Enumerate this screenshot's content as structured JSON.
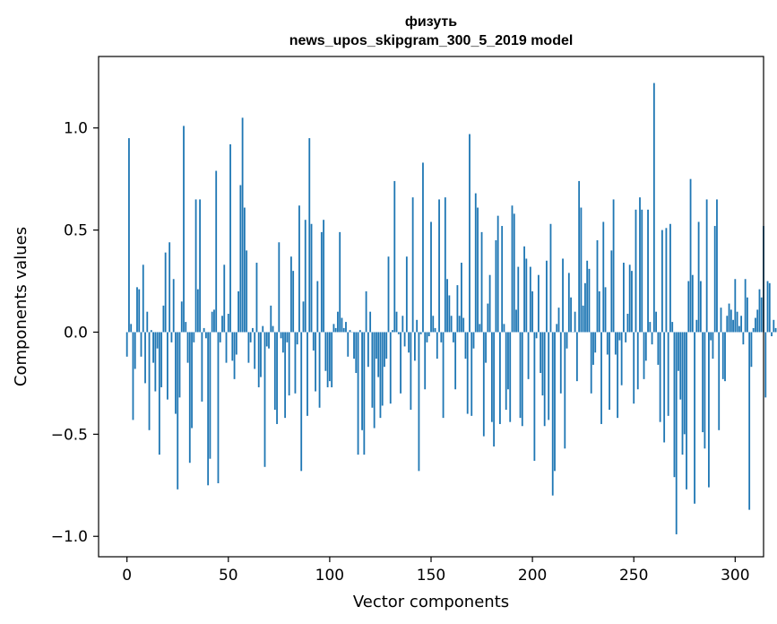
{
  "chart_data": {
    "type": "bar",
    "title_line1": "физуть",
    "title_line2": "news_upos_skipgram_300_5_2019 model",
    "xlabel": "Vector components",
    "ylabel": "Components values",
    "xlim": [
      -14,
      314
    ],
    "ylim": [
      -1.1,
      1.35
    ],
    "x_ticks": [
      0,
      50,
      100,
      150,
      200,
      250,
      300
    ],
    "x_tick_labels": [
      "0",
      "50",
      "100",
      "150",
      "200",
      "250",
      "300"
    ],
    "y_ticks": [
      1.0,
      0.5,
      0.0,
      -0.5,
      -1.0
    ],
    "y_tick_labels": [
      "1.0",
      "0.5",
      "0.0",
      "−0.5",
      "−1.0"
    ],
    "bar_color": "#1f77b4",
    "values": [
      -0.12,
      0.95,
      0.04,
      -0.43,
      -0.18,
      0.22,
      0.21,
      -0.12,
      0.33,
      -0.25,
      0.1,
      -0.48,
      0.01,
      -0.15,
      -0.29,
      -0.08,
      -0.6,
      -0.27,
      0.13,
      0.39,
      -0.33,
      0.44,
      -0.05,
      0.26,
      -0.4,
      -0.77,
      -0.32,
      0.15,
      1.01,
      0.05,
      -0.15,
      -0.64,
      -0.47,
      -0.05,
      0.65,
      0.21,
      0.65,
      -0.34,
      0.02,
      -0.03,
      -0.75,
      -0.62,
      0.1,
      0.11,
      0.79,
      -0.74,
      -0.05,
      0.08,
      0.33,
      -0.15,
      0.09,
      0.92,
      -0.14,
      -0.23,
      -0.11,
      0.2,
      0.72,
      1.05,
      0.61,
      0.4,
      -0.15,
      -0.05,
      0.02,
      -0.18,
      0.34,
      -0.27,
      -0.22,
      0.03,
      -0.66,
      -0.07,
      -0.08,
      0.13,
      0.03,
      -0.38,
      -0.45,
      0.44,
      -0.03,
      -0.1,
      -0.42,
      -0.05,
      -0.31,
      0.37,
      0.3,
      -0.3,
      -0.06,
      0.62,
      -0.68,
      0.15,
      0.55,
      -0.41,
      0.95,
      0.53,
      -0.09,
      -0.29,
      0.25,
      -0.37,
      0.49,
      0.55,
      -0.19,
      -0.27,
      -0.24,
      -0.27,
      0.04,
      0.02,
      0.1,
      0.49,
      0.07,
      0.02,
      0.05,
      -0.12,
      0.01,
      0.0,
      -0.13,
      -0.2,
      -0.6,
      0.01,
      -0.48,
      -0.6,
      0.2,
      -0.17,
      0.1,
      -0.37,
      -0.47,
      -0.13,
      -0.22,
      -0.42,
      -0.36,
      -0.17,
      -0.13,
      0.37,
      -0.35,
      0.01,
      0.74,
      0.1,
      -0.01,
      -0.3,
      0.08,
      -0.07,
      0.37,
      -0.1,
      -0.38,
      0.66,
      -0.14,
      0.06,
      -0.68,
      -0.01,
      0.83,
      -0.28,
      -0.05,
      -0.02,
      0.54,
      0.08,
      0.02,
      -0.13,
      0.65,
      -0.05,
      -0.42,
      0.66,
      0.26,
      0.18,
      0.08,
      -0.05,
      -0.28,
      0.23,
      0.08,
      0.34,
      0.07,
      -0.13,
      -0.4,
      0.97,
      -0.41,
      -0.08,
      0.68,
      0.61,
      0.04,
      0.49,
      -0.51,
      -0.15,
      0.14,
      0.28,
      -0.44,
      -0.56,
      0.45,
      0.57,
      -0.45,
      0.52,
      0.04,
      -0.38,
      -0.28,
      -0.44,
      0.62,
      0.58,
      0.11,
      0.32,
      -0.42,
      -0.46,
      0.42,
      0.36,
      -0.23,
      0.32,
      0.2,
      -0.63,
      -0.03,
      0.28,
      -0.2,
      -0.31,
      -0.46,
      0.35,
      -0.43,
      0.53,
      -0.8,
      -0.68,
      0.04,
      0.12,
      -0.3,
      0.36,
      -0.57,
      -0.08,
      0.29,
      0.17,
      0.0,
      0.1,
      -0.24,
      0.74,
      0.61,
      0.13,
      0.24,
      0.35,
      0.31,
      -0.3,
      -0.16,
      -0.1,
      0.45,
      0.2,
      -0.45,
      0.54,
      0.22,
      -0.11,
      -0.38,
      0.4,
      0.65,
      -0.11,
      -0.42,
      -0.04,
      -0.26,
      0.34,
      -0.05,
      0.09,
      0.33,
      0.3,
      -0.35,
      0.6,
      -0.28,
      0.66,
      0.6,
      -0.23,
      -0.14,
      0.6,
      0.05,
      -0.06,
      1.22,
      0.1,
      -0.16,
      -0.44,
      0.5,
      -0.54,
      0.51,
      -0.41,
      0.53,
      0.05,
      -0.71,
      -0.99,
      -0.19,
      -0.33,
      -0.6,
      -0.5,
      -0.77,
      0.25,
      0.75,
      0.28,
      -0.84,
      0.06,
      0.54,
      0.25,
      -0.49,
      -0.57,
      0.65,
      -0.76,
      -0.04,
      -0.13,
      0.52,
      0.65,
      -0.48,
      0.12,
      -0.23,
      -0.24,
      0.08,
      0.14,
      0.11,
      0.06,
      0.26,
      0.1,
      0.03,
      0.08,
      -0.06,
      0.26,
      0.17,
      -0.87,
      -0.17,
      0.02,
      0.07,
      0.11,
      0.21,
      0.17,
      0.52,
      -0.32,
      0.25,
      0.24,
      -0.02,
      0.06,
      0.02
    ]
  }
}
